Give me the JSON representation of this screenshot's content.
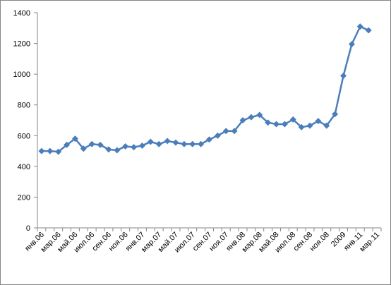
{
  "chart_data": {
    "type": "line",
    "categories": [
      "янв.06",
      null,
      "мар.06",
      null,
      "май.06",
      null,
      "июл.06",
      null,
      "сен.06",
      null,
      "ноя.06",
      null,
      "янв.07",
      null,
      "мар.07",
      null,
      "май.07",
      null,
      "июл.07",
      null,
      "сен.07",
      null,
      "ноя.07",
      null,
      "янв.08",
      null,
      "мар.08",
      null,
      "май.08",
      null,
      "июл.08",
      null,
      "сен.08",
      null,
      "ноя.08",
      null,
      "2009",
      null,
      "янв.11",
      null,
      "мар.11"
    ],
    "series": [
      {
        "color": "#4a7ebb",
        "values": [
          500,
          500,
          495,
          540,
          580,
          515,
          545,
          540,
          510,
          505,
          530,
          525,
          535,
          560,
          545,
          565,
          555,
          545,
          545,
          545,
          575,
          600,
          630,
          630,
          700,
          720,
          735,
          685,
          675,
          675,
          705,
          655,
          665,
          695,
          665,
          740,
          990,
          1195,
          1310,
          1285,
          null
        ]
      }
    ],
    "ylim": [
      0,
      1400
    ],
    "yticks": [
      0,
      200,
      400,
      600,
      800,
      1000,
      1200,
      1400
    ],
    "grid": false
  }
}
